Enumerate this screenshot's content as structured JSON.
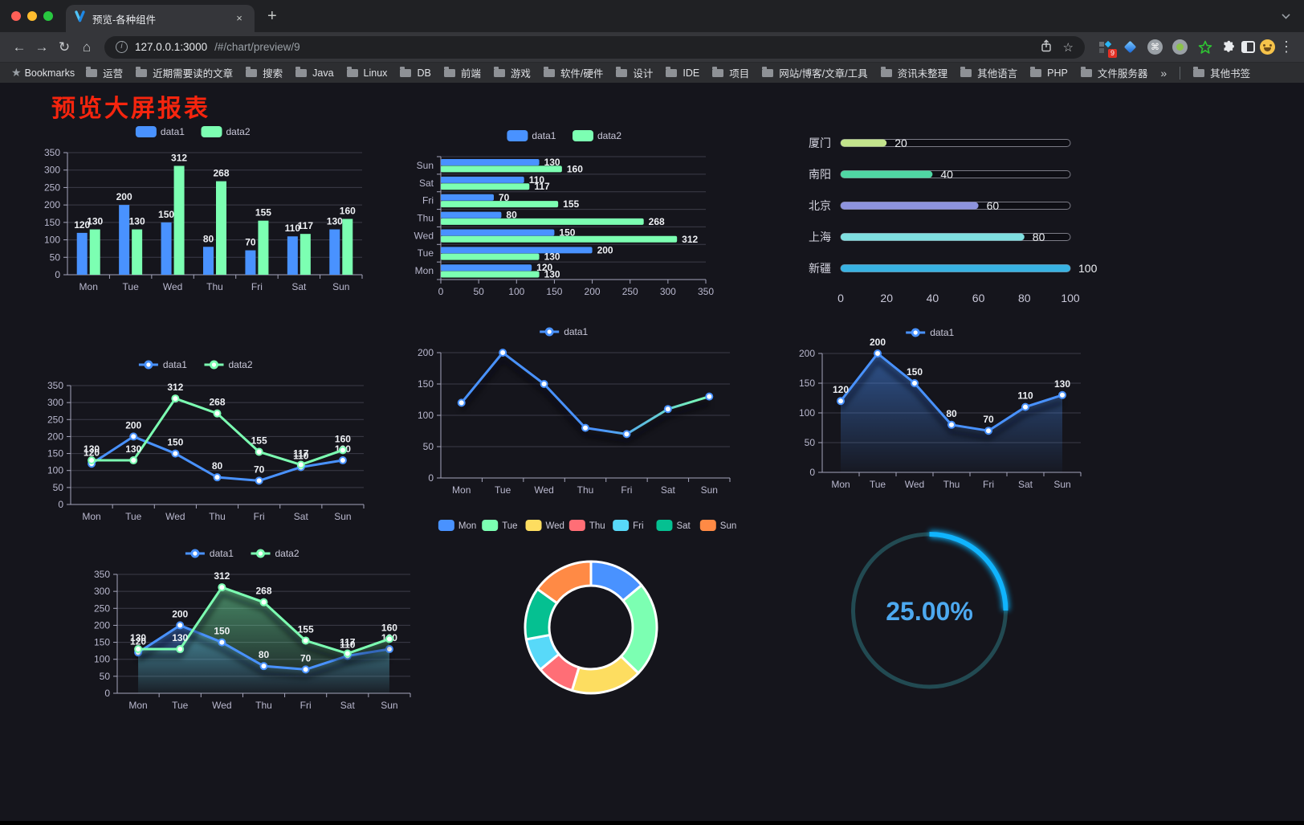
{
  "browser": {
    "traffic_lights": [
      "#ff5f57",
      "#febc2e",
      "#28c840"
    ],
    "tab": {
      "title": "预览-各种组件"
    },
    "url": {
      "host": "127.0.0.1:3000",
      "path": "/#/chart/preview/9"
    },
    "icons": {
      "close": "×",
      "plus": "+",
      "back": "←",
      "forward": "→",
      "reload": "↻",
      "home": "⌂",
      "star": "☆",
      "menu": "⋮",
      "bstar": "★",
      "command": "⌘",
      "info": "i"
    },
    "extensions_badge": "9",
    "bookmarks": {
      "root": "Bookmarks",
      "items": [
        "运营",
        "近期需要读的文章",
        "搜索",
        "Java",
        "Linux",
        "DB",
        "前端",
        "游戏",
        "软件/硬件",
        "设计",
        "IDE",
        "项目",
        "网站/博客/文章/工具",
        "资讯未整理",
        "其他语言",
        "PHP",
        "文件服务器"
      ],
      "overflow": "»",
      "other": "其他书签"
    }
  },
  "page": {
    "title": "预览大屏报表",
    "title_color": "#f6250e"
  },
  "theme": {
    "background": "#15151c",
    "axis_line": "#a5a5bb",
    "axis_text": "#b9b8ce",
    "grid_line": "#3c3c48",
    "value_label": "#eef0f4",
    "legend_text": "#c9c8d9"
  },
  "chart_data": [
    {
      "id": "c1",
      "type": "bar",
      "title": "",
      "categories": [
        "Mon",
        "Tue",
        "Wed",
        "Thu",
        "Fri",
        "Sat",
        "Sun"
      ],
      "series": [
        {
          "name": "data1",
          "color": "#4992ff",
          "values": [
            120,
            200,
            150,
            80,
            70,
            110,
            130
          ]
        },
        {
          "name": "data2",
          "color": "#7cffb2",
          "values": [
            130,
            130,
            312,
            268,
            155,
            117,
            160
          ]
        }
      ],
      "ylim": [
        0,
        350
      ],
      "ytick": 50,
      "show_labels": true,
      "legend_position": "top"
    },
    {
      "id": "c2",
      "type": "hbar",
      "title": "",
      "categories": [
        "Mon",
        "Tue",
        "Wed",
        "Thu",
        "Fri",
        "Sat",
        "Sun"
      ],
      "series": [
        {
          "name": "data1",
          "color": "#4992ff",
          "values": [
            120,
            200,
            150,
            80,
            70,
            110,
            130
          ]
        },
        {
          "name": "data2",
          "color": "#7cffb2",
          "values": [
            130,
            130,
            312,
            268,
            155,
            117,
            160
          ]
        }
      ],
      "xlim": [
        0,
        350
      ],
      "xtick": 50,
      "show_labels": true,
      "legend_position": "top"
    },
    {
      "id": "c3",
      "type": "progress",
      "title": "",
      "items": [
        {
          "label": "厦门",
          "value": 20,
          "color": "#c3e48c"
        },
        {
          "label": "南阳",
          "value": 40,
          "color": "#4fd6a3"
        },
        {
          "label": "北京",
          "value": 60,
          "color": "#8d93dd"
        },
        {
          "label": "上海",
          "value": 80,
          "color": "#7fdfe0"
        },
        {
          "label": "新疆",
          "value": 100,
          "color": "#38b2e2"
        }
      ],
      "max": 100,
      "ticks": [
        0,
        20,
        40,
        60,
        80,
        100
      ]
    },
    {
      "id": "c4",
      "type": "line",
      "title": "",
      "categories": [
        "Mon",
        "Tue",
        "Wed",
        "Thu",
        "Fri",
        "Sat",
        "Sun"
      ],
      "series": [
        {
          "name": "data1",
          "color": "#4992ff",
          "values": [
            120,
            200,
            150,
            80,
            70,
            110,
            130
          ]
        },
        {
          "name": "data2",
          "color": "#7cffb2",
          "values": [
            130,
            130,
            312,
            268,
            155,
            117,
            160
          ]
        }
      ],
      "ylim": [
        0,
        350
      ],
      "ytick": 50,
      "show_labels": true,
      "markers": true,
      "legend_position": "top"
    },
    {
      "id": "c5",
      "type": "line",
      "title": "",
      "categories": [
        "Mon",
        "Tue",
        "Wed",
        "Thu",
        "Fri",
        "Sat",
        "Sun"
      ],
      "series": [
        {
          "name": "data1",
          "color": "#4992ff",
          "gradient": [
            "#4992ff",
            "#7cffb2"
          ],
          "values": [
            120,
            200,
            150,
            80,
            70,
            110,
            130
          ]
        }
      ],
      "ylim": [
        0,
        200
      ],
      "ytick": 50,
      "show_labels": false,
      "markers": true,
      "shadow": true,
      "legend_position": "top"
    },
    {
      "id": "c6",
      "type": "area",
      "title": "",
      "categories": [
        "Mon",
        "Tue",
        "Wed",
        "Thu",
        "Fri",
        "Sat",
        "Sun"
      ],
      "series": [
        {
          "name": "data1",
          "color": "#4992ff",
          "values": [
            120,
            200,
            150,
            80,
            70,
            110,
            130
          ]
        }
      ],
      "ylim": [
        0,
        200
      ],
      "ytick": 50,
      "show_labels": true,
      "markers": true,
      "legend_position": "top"
    },
    {
      "id": "c7",
      "type": "area",
      "title": "",
      "categories": [
        "Mon",
        "Tue",
        "Wed",
        "Thu",
        "Fri",
        "Sat",
        "Sun"
      ],
      "series": [
        {
          "name": "data1",
          "color": "#4992ff",
          "values": [
            120,
            200,
            150,
            80,
            70,
            110,
            130
          ]
        },
        {
          "name": "data2",
          "color": "#7cffb2",
          "values": [
            130,
            130,
            312,
            268,
            155,
            117,
            160
          ]
        }
      ],
      "ylim": [
        0,
        350
      ],
      "ytick": 50,
      "show_labels": true,
      "markers": true,
      "legend_position": "top"
    },
    {
      "id": "c8",
      "type": "donut",
      "title": "",
      "items": [
        {
          "label": "Mon",
          "value": 120,
          "color": "#4992ff"
        },
        {
          "label": "Tue",
          "value": 200,
          "color": "#7cffb2"
        },
        {
          "label": "Wed",
          "value": 150,
          "color": "#fddd60"
        },
        {
          "label": "Thu",
          "value": 80,
          "color": "#ff6e76"
        },
        {
          "label": "Fri",
          "value": 70,
          "color": "#58d9f9"
        },
        {
          "label": "Sat",
          "value": 110,
          "color": "#05c091"
        },
        {
          "label": "Sun",
          "value": 130,
          "color": "#ff8a45"
        }
      ],
      "legend_position": "top"
    },
    {
      "id": "c9",
      "type": "gauge",
      "title": "",
      "value": 25,
      "label": "25.00%",
      "color": "#10b4fd",
      "track_color": "#224a52",
      "text_color": "#4da9f0"
    }
  ]
}
